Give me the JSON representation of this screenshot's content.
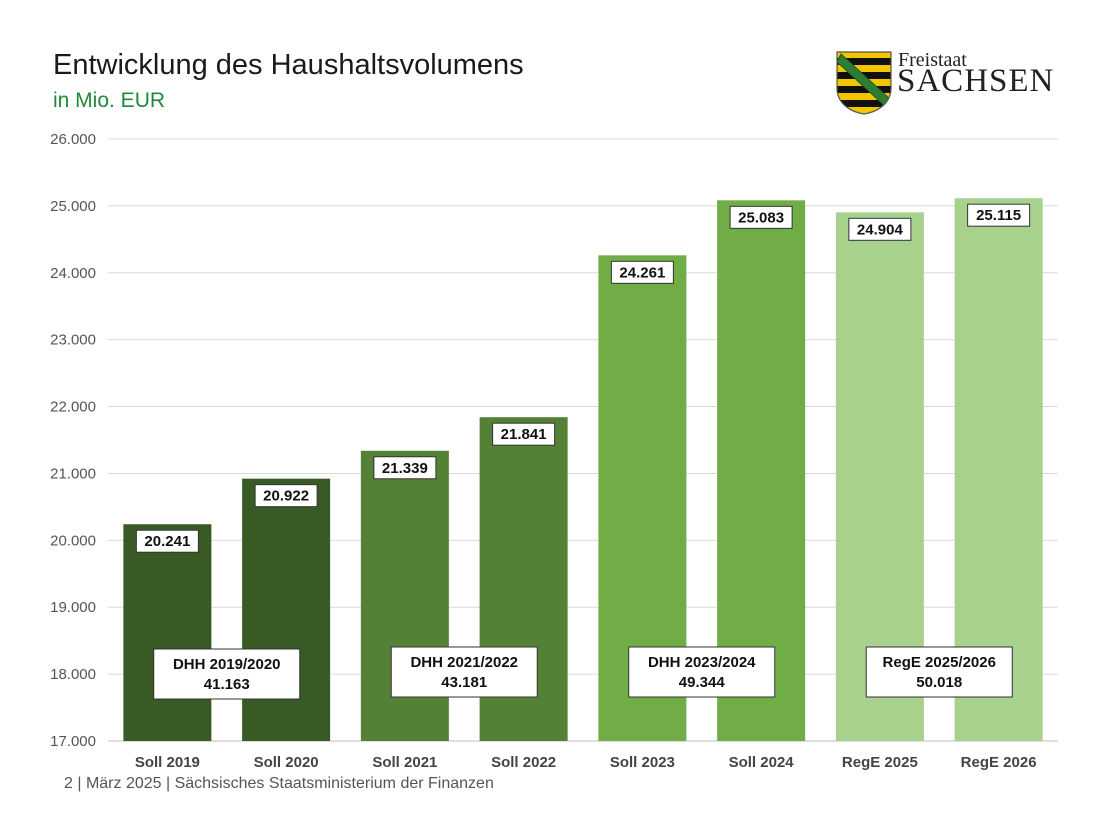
{
  "header": {
    "title": "Entwicklung des Haushaltsvolumens",
    "subtitle": "in Mio. EUR"
  },
  "logo": {
    "line1": "Freistaat",
    "line2": "SACHSEN"
  },
  "footer": {
    "text": "2  | März 2025 | Sächsisches Staatsministerium der Finanzen"
  },
  "colors": {
    "dark_green": "#3a5a25",
    "mid_green": "#538135",
    "bright_green": "#70ad47",
    "light_green": "#a9d18e"
  },
  "chart_data": {
    "type": "bar",
    "title": "",
    "xlabel": "",
    "ylabel": "",
    "ylim": [
      17000,
      26000
    ],
    "yticks": [
      17000,
      18000,
      19000,
      20000,
      21000,
      22000,
      23000,
      24000,
      25000,
      26000
    ],
    "ytick_labels": [
      "17.000",
      "18.000",
      "19.000",
      "20.000",
      "21.000",
      "22.000",
      "23.000",
      "24.000",
      "25.000",
      "26.000"
    ],
    "grid": true,
    "categories": [
      "Soll 2019",
      "Soll 2020",
      "Soll 2021",
      "Soll 2022",
      "Soll 2023",
      "Soll 2024",
      "RegE 2025",
      "RegE 2026"
    ],
    "values": [
      20241,
      20922,
      21339,
      21841,
      24261,
      25083,
      24904,
      25115
    ],
    "value_labels": [
      "20.241",
      "20.922",
      "21.339",
      "21.841",
      "24.261",
      "25.083",
      "24.904",
      "25.115"
    ],
    "bar_colors": [
      "#3a5a25",
      "#3a5a25",
      "#538135",
      "#538135",
      "#70ad47",
      "#70ad47",
      "#a9d18e",
      "#a9d18e"
    ],
    "groups": [
      {
        "label": "DHH 2019/2020",
        "total": "41.163",
        "categories": [
          0,
          1
        ]
      },
      {
        "label": "DHH 2021/2022",
        "total": "43.181",
        "categories": [
          2,
          3
        ]
      },
      {
        "label": "DHH 2023/2024",
        "total": "49.344",
        "categories": [
          4,
          5
        ]
      },
      {
        "label": "RegE 2025/2026",
        "total": "50.018",
        "categories": [
          6,
          7
        ]
      }
    ]
  }
}
